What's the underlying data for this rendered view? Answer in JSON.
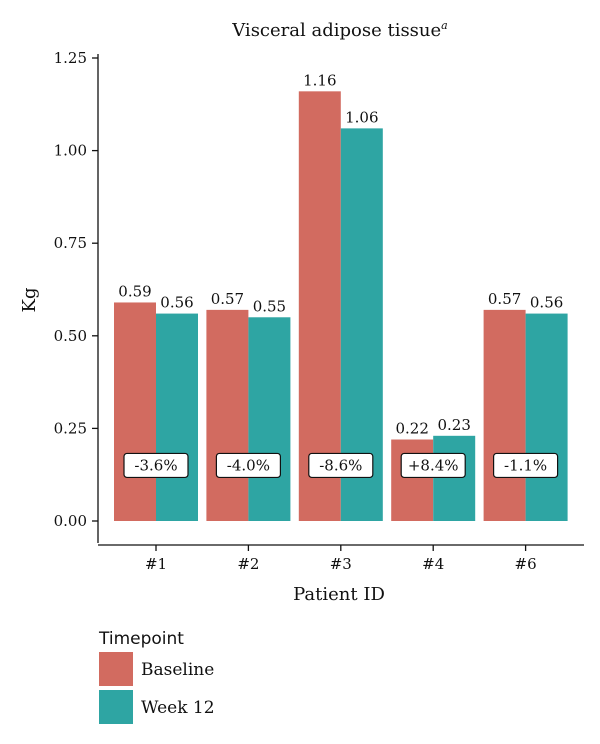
{
  "chart_data": {
    "type": "bar",
    "title": "Visceral adipose tissue",
    "title_superscript": "a",
    "xlabel": "Patient ID",
    "ylabel": "Kg",
    "ylim": [
      0,
      1.25
    ],
    "yticks": [
      "0.00",
      "0.25",
      "0.50",
      "0.75",
      "1.00",
      "1.25"
    ],
    "grid": false,
    "categories": [
      "#1",
      "#2",
      "#3",
      "#4",
      "#6"
    ],
    "series": [
      {
        "name": "Baseline",
        "color": "#d26b60",
        "values": [
          0.59,
          0.57,
          1.16,
          0.22,
          0.57
        ],
        "labels": [
          "0.59",
          "0.57",
          "1.16",
          "0.22",
          "0.57"
        ]
      },
      {
        "name": "Week 12",
        "color": "#2ea5a3",
        "values": [
          0.56,
          0.55,
          1.06,
          0.23,
          0.56
        ],
        "labels": [
          "0.56",
          "0.55",
          "1.06",
          "0.23",
          "0.56"
        ]
      }
    ],
    "change_labels": [
      "-3.6%",
      "-4.0%",
      "-8.6%",
      "+8.4%",
      "-1.1%"
    ],
    "change_label_y": 0.15,
    "legend": {
      "title": "Timepoint",
      "placement": "bottom-left"
    }
  }
}
